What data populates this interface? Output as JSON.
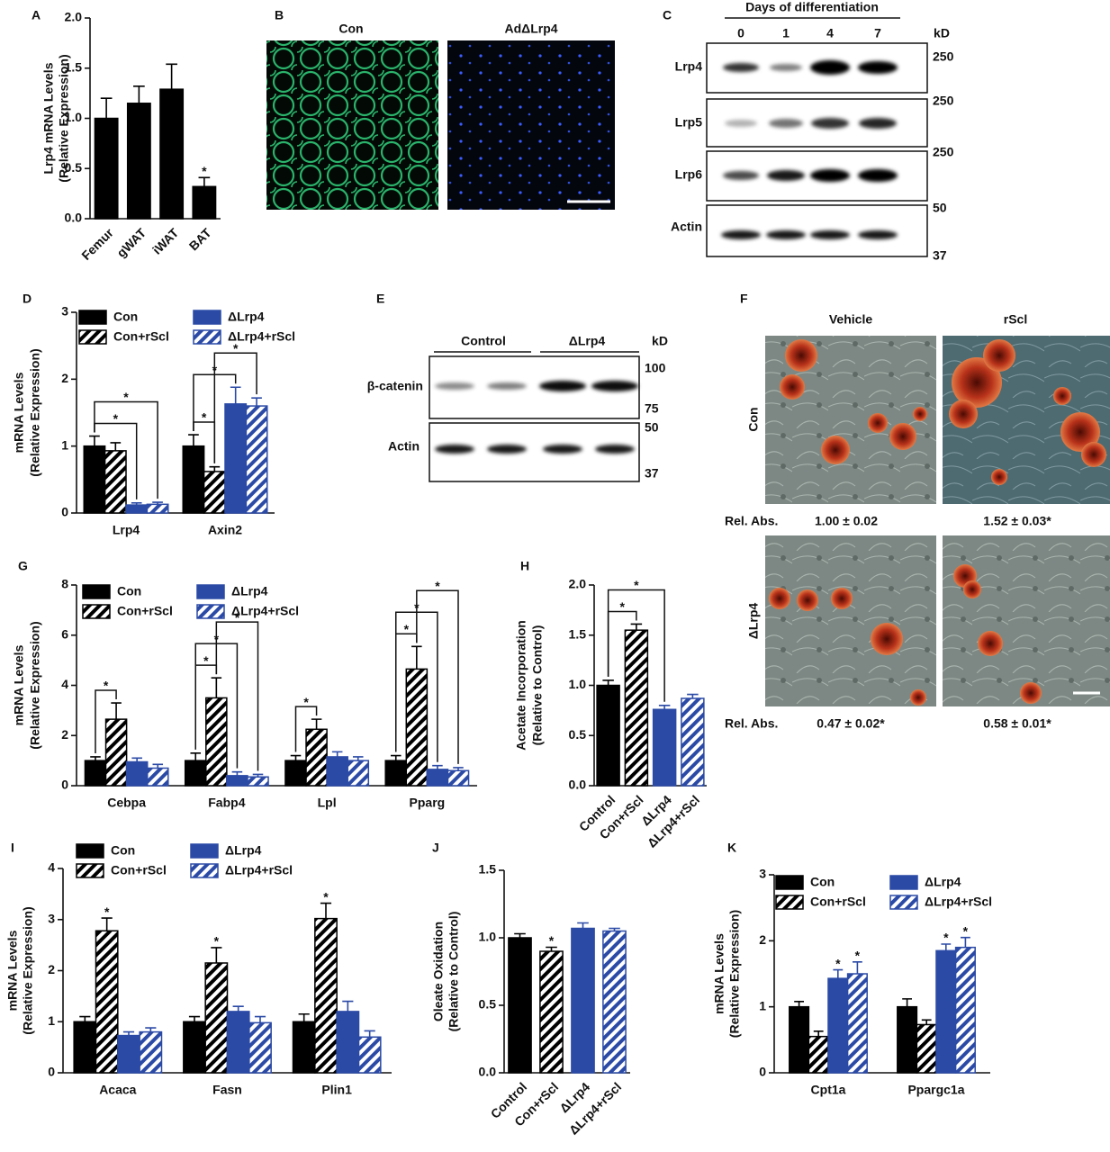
{
  "chart_data": [
    {
      "type": "bar",
      "panel": "A",
      "ylabel": [
        "Lrp4 mRNA Levels",
        "(Relative Expression)"
      ],
      "categories": [
        "Femur",
        "gWAT",
        "iWAT",
        "BAT"
      ],
      "values": [
        1.0,
        1.15,
        1.29,
        0.32
      ],
      "errors": [
        0.2,
        0.17,
        0.25,
        0.09
      ],
      "color": "#000000",
      "ylim": [
        0,
        2
      ],
      "yticks": [
        {
          "value": 0,
          "label": "0.0"
        },
        0.5,
        {
          "value": 1,
          "label": "1.0"
        },
        1.5,
        {
          "value": 2,
          "label": "2.0"
        }
      ],
      "stars": [
        {
          "text": "*",
          "category": 3
        }
      ]
    },
    {
      "type": "bar",
      "panel": "D",
      "ylabel": [
        "mRNA Levels",
        "(Relative Expression)"
      ],
      "categories": [
        "Lrp4",
        "Axin2"
      ],
      "series": [
        {
          "name": "Con",
          "color": "#000000",
          "hatch": false,
          "values": [
            1.0,
            1.0
          ],
          "errors": [
            0.15,
            0.17
          ]
        },
        {
          "name": "Con+rScl",
          "color": "#000000",
          "hatch": true,
          "values": [
            0.93,
            0.62
          ],
          "errors": [
            0.12,
            0.07
          ]
        },
        {
          "name": "ΔLrp4",
          "color": "#2b4aa6",
          "hatch": false,
          "values": [
            0.12,
            1.63
          ],
          "errors": [
            0.03,
            0.25
          ]
        },
        {
          "name": "ΔLrp4+rScl",
          "color": "#2b4aa6",
          "hatch": true,
          "values": [
            0.13,
            1.6
          ],
          "errors": [
            0.03,
            0.12
          ]
        }
      ],
      "ylim": [
        0,
        3
      ],
      "yticks": [
        0,
        1,
        2,
        3
      ],
      "brackets": [
        {
          "text": "*",
          "series": [
            0,
            2
          ],
          "category": 0
        },
        {
          "text": "*",
          "series": [
            0,
            3
          ],
          "category": 0
        },
        {
          "text": "*",
          "series": [
            0,
            1
          ],
          "category": 1
        },
        {
          "text": "*",
          "series": [
            0,
            2
          ],
          "category": 1
        },
        {
          "text": "*",
          "series": [
            1,
            3
          ],
          "category": 1
        }
      ]
    },
    {
      "type": "bar",
      "panel": "G",
      "ylabel": [
        "mRNA Levels",
        "(Relative Expression)"
      ],
      "categories": [
        "Cebpa",
        "Fabp4",
        "Lpl",
        "Pparg"
      ],
      "series": [
        {
          "name": "Con",
          "color": "#000000",
          "hatch": false,
          "values": [
            1.0,
            1.0,
            1.0,
            1.0
          ],
          "errors": [
            0.15,
            0.3,
            0.2,
            0.2
          ]
        },
        {
          "name": "Con+rScl",
          "color": "#000000",
          "hatch": true,
          "values": [
            2.65,
            3.5,
            2.25,
            4.65
          ],
          "errors": [
            0.65,
            0.8,
            0.4,
            0.9
          ]
        },
        {
          "name": "ΔLrp4",
          "color": "#2b4aa6",
          "hatch": false,
          "values": [
            0.95,
            0.4,
            1.15,
            0.65
          ],
          "errors": [
            0.15,
            0.15,
            0.2,
            0.15
          ]
        },
        {
          "name": "ΔLrp4+rScl",
          "color": "#2b4aa6",
          "hatch": true,
          "values": [
            0.7,
            0.35,
            1.0,
            0.6
          ],
          "errors": [
            0.15,
            0.1,
            0.15,
            0.12
          ]
        }
      ],
      "ylim": [
        0,
        8
      ],
      "yticks": [
        0,
        2,
        4,
        6,
        8
      ],
      "brackets": [
        {
          "text": "*",
          "series": [
            0,
            1
          ],
          "category": 0
        },
        {
          "text": "*",
          "series": [
            0,
            1
          ],
          "category": 1
        },
        {
          "text": "*",
          "series": [
            0,
            2
          ],
          "category": 1
        },
        {
          "text": "*",
          "series": [
            1,
            3
          ],
          "category": 1
        },
        {
          "text": "*",
          "series": [
            0,
            1
          ],
          "category": 2
        },
        {
          "text": "*",
          "series": [
            0,
            1
          ],
          "category": 3
        },
        {
          "text": "*",
          "series": [
            0,
            2
          ],
          "category": 3
        },
        {
          "text": "*",
          "series": [
            1,
            3
          ],
          "category": 3
        }
      ]
    },
    {
      "type": "bar",
      "panel": "H",
      "ylabel": [
        "Acetate Incorporation",
        "(Relative to Control)"
      ],
      "categories": [
        "Control",
        "Con+rScl",
        "ΔLrp4",
        "ΔLrp4+rScl"
      ],
      "values": [
        1.0,
        1.55,
        0.76,
        0.87
      ],
      "errors": [
        0.05,
        0.06,
        0.04,
        0.04
      ],
      "colors": [
        "#000000",
        "#000000",
        "#2b4aa6",
        "#2b4aa6"
      ],
      "hatch": [
        false,
        true,
        false,
        true
      ],
      "ylim": [
        0,
        2
      ],
      "yticks": [
        {
          "value": 0,
          "label": "0.0"
        },
        0.5,
        {
          "value": 1,
          "label": "1.0"
        },
        1.5,
        {
          "value": 2,
          "label": "2.0"
        }
      ],
      "brackets": [
        {
          "text": "*",
          "categories": [
            0,
            1
          ]
        },
        {
          "text": "*",
          "categories": [
            0,
            2
          ]
        }
      ]
    },
    {
      "type": "bar",
      "panel": "I",
      "ylabel": [
        "mRNA Levels",
        "(Relative Expression)"
      ],
      "categories": [
        "Acaca",
        "Fasn",
        "Plin1"
      ],
      "series": [
        {
          "name": "Con",
          "color": "#000000",
          "hatch": false,
          "values": [
            1.0,
            1.0,
            1.0
          ],
          "errors": [
            0.1,
            0.1,
            0.15
          ]
        },
        {
          "name": "Con+rScl",
          "color": "#000000",
          "hatch": true,
          "values": [
            2.78,
            2.15,
            3.02
          ],
          "errors": [
            0.25,
            0.3,
            0.3
          ]
        },
        {
          "name": "ΔLrp4",
          "color": "#2b4aa6",
          "hatch": false,
          "values": [
            0.73,
            1.2,
            1.2
          ],
          "errors": [
            0.07,
            0.1,
            0.2
          ]
        },
        {
          "name": "ΔLrp4+rScl",
          "color": "#2b4aa6",
          "hatch": true,
          "values": [
            0.8,
            0.98,
            0.7
          ],
          "errors": [
            0.08,
            0.12,
            0.12
          ]
        }
      ],
      "ylim": [
        0,
        4
      ],
      "yticks": [
        0,
        1,
        2,
        3,
        4
      ],
      "stars": [
        {
          "text": "*",
          "series": 1,
          "category": 0
        },
        {
          "text": "*",
          "series": 1,
          "category": 1
        },
        {
          "text": "*",
          "series": 1,
          "category": 2
        }
      ]
    },
    {
      "type": "bar",
      "panel": "J",
      "ylabel": [
        "Oleate Oxidation",
        "(Relative to Control)"
      ],
      "categories": [
        "Control",
        "Con+rScl",
        "ΔLrp4",
        "ΔLrp4+rScl"
      ],
      "values": [
        1.0,
        0.9,
        1.07,
        1.05
      ],
      "errors": [
        0.03,
        0.03,
        0.04,
        0.02
      ],
      "colors": [
        "#000000",
        "#000000",
        "#2b4aa6",
        "#2b4aa6"
      ],
      "hatch": [
        false,
        true,
        false,
        true
      ],
      "ylim": [
        0,
        1.5
      ],
      "yticks": [
        {
          "value": 0,
          "label": "0.0"
        },
        0.5,
        {
          "value": 1,
          "label": "1.0"
        },
        1.5
      ],
      "stars": [
        {
          "text": "*",
          "category": 1
        }
      ]
    },
    {
      "type": "bar",
      "panel": "K",
      "ylabel": [
        "mRNA Levels",
        "(Relative Expression)"
      ],
      "categories": [
        "Cpt1a",
        "Ppargc1a"
      ],
      "series": [
        {
          "name": "Con",
          "color": "#000000",
          "hatch": false,
          "values": [
            1.0,
            1.0
          ],
          "errors": [
            0.08,
            0.12
          ]
        },
        {
          "name": "Con+rScl",
          "color": "#000000",
          "hatch": true,
          "values": [
            0.55,
            0.73
          ],
          "errors": [
            0.08,
            0.07
          ]
        },
        {
          "name": "ΔLrp4",
          "color": "#2b4aa6",
          "hatch": false,
          "values": [
            1.43,
            1.85
          ],
          "errors": [
            0.13,
            0.1
          ]
        },
        {
          "name": "ΔLrp4+rScl",
          "color": "#2b4aa6",
          "hatch": true,
          "values": [
            1.5,
            1.9
          ],
          "errors": [
            0.18,
            0.15
          ]
        }
      ],
      "ylim": [
        0,
        3
      ],
      "yticks": [
        0,
        1,
        2,
        3
      ],
      "stars": [
        {
          "text": "*",
          "series": 2,
          "category": 0
        },
        {
          "text": "*",
          "series": 3,
          "category": 0
        },
        {
          "text": "*",
          "series": 2,
          "category": 1
        },
        {
          "text": "*",
          "series": 3,
          "category": 1
        }
      ]
    }
  ],
  "panel_b": {
    "panel": "B",
    "columns": [
      "Con",
      "AdΔLrp4"
    ]
  },
  "panel_c": {
    "panel": "C",
    "header": "Days of differentiation",
    "lanes": [
      "0",
      "1",
      "4",
      "7"
    ],
    "unit": "kD",
    "blots": [
      {
        "label": "Lrp4",
        "markers": [
          "250"
        ]
      },
      {
        "label": "Lrp5",
        "markers": [
          "250"
        ]
      },
      {
        "label": "Lrp6",
        "markers": [
          "250"
        ]
      },
      {
        "label": "Actin",
        "markers": [
          "50",
          "37"
        ]
      }
    ]
  },
  "panel_e": {
    "panel": "E",
    "groups": [
      "Control",
      "ΔLrp4"
    ],
    "unit": "kD",
    "blots": [
      {
        "label": "β-catenin",
        "markers": [
          "100",
          "75"
        ]
      },
      {
        "label": "Actin",
        "markers": [
          "50",
          "37"
        ]
      }
    ]
  },
  "panel_f": {
    "panel": "F",
    "columns": [
      "Vehicle",
      "rScl"
    ],
    "rows": [
      "Con",
      "ΔLrp4"
    ],
    "measurements": [
      {
        "label": "Rel. Abs.",
        "values": [
          "1.00 ± 0.02",
          "1.52 ± 0.03*"
        ]
      },
      {
        "label": "Rel. Abs.",
        "values": [
          "0.47 ± 0.02*",
          "0.58 ± 0.01*"
        ]
      }
    ]
  }
}
